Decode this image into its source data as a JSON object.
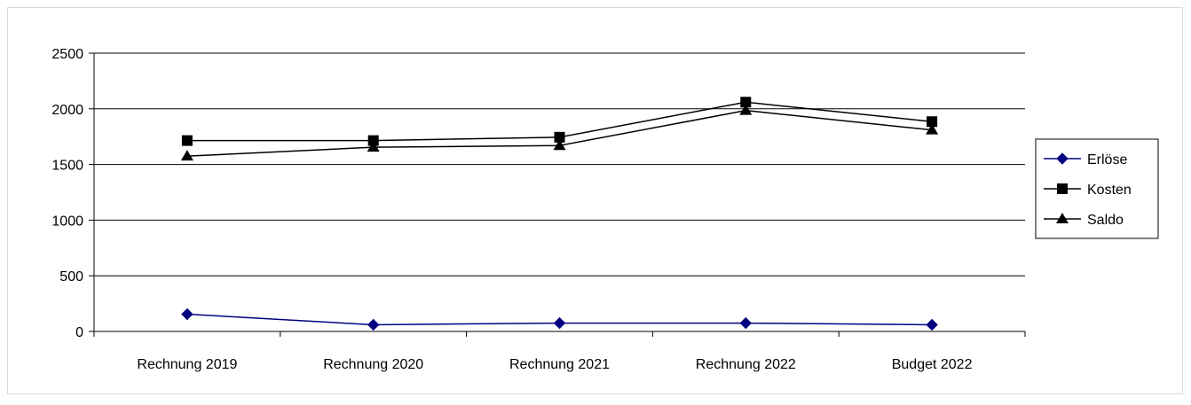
{
  "chart_data": {
    "type": "line",
    "categories": [
      "Rechnung 2019",
      "Rechnung 2020",
      "Rechnung 2021",
      "Rechnung 2022",
      "Budget 2022"
    ],
    "ylim": [
      0,
      2500
    ],
    "yticks": [
      0,
      500,
      1000,
      1500,
      2000,
      2500
    ],
    "grid": true,
    "legend_position": "right",
    "series": [
      {
        "name": "Erlöse",
        "values": [
          155,
          60,
          75,
          75,
          60
        ],
        "color": "#000080",
        "marker": "diamond"
      },
      {
        "name": "Kosten",
        "values": [
          1715,
          1715,
          1745,
          2060,
          1885
        ],
        "color": "#000000",
        "marker": "square"
      },
      {
        "name": "Saldo",
        "values": [
          1575,
          1655,
          1670,
          1985,
          1810
        ],
        "color": "#000000",
        "marker": "triangle"
      }
    ]
  }
}
